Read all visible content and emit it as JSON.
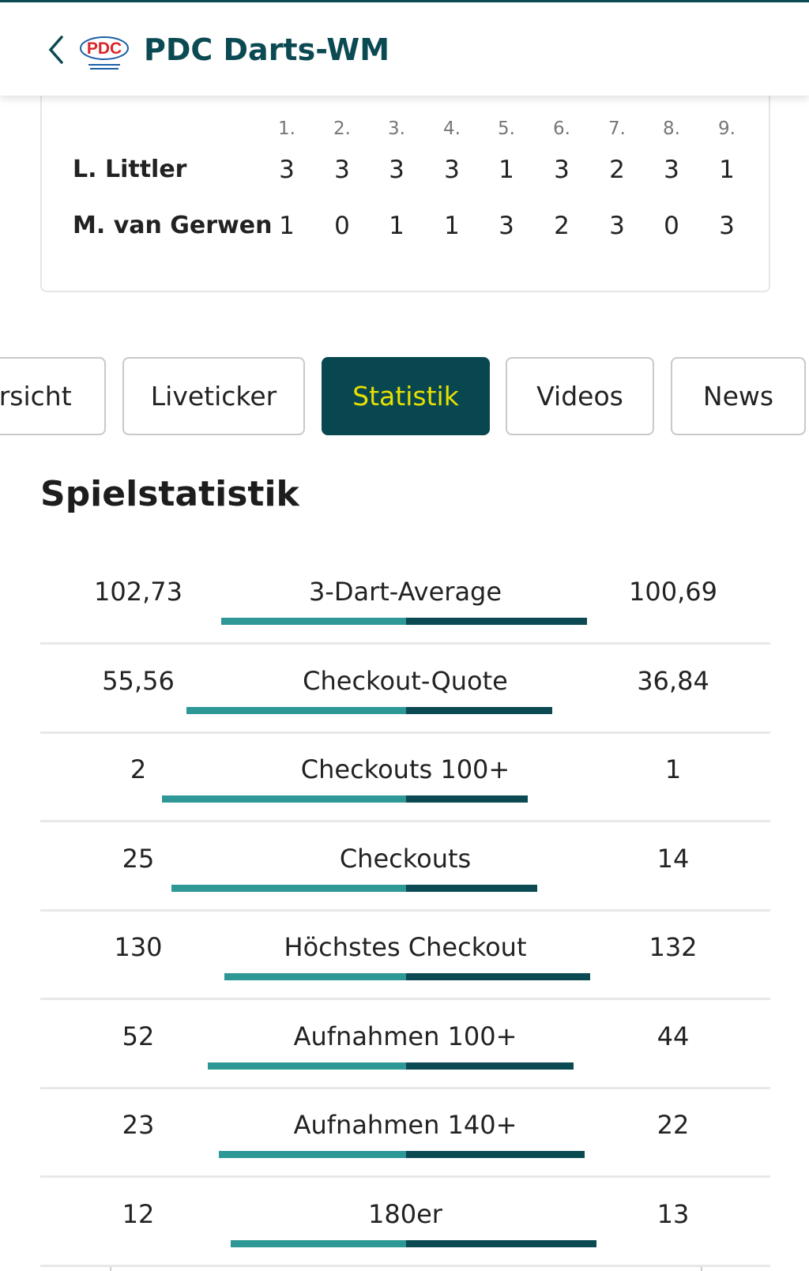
{
  "header": {
    "title": "PDC Darts-WM",
    "logo": "PDC"
  },
  "scoreboard": {
    "rounds": [
      "1.",
      "2.",
      "3.",
      "4.",
      "5.",
      "6.",
      "7.",
      "8.",
      "9."
    ],
    "players": [
      {
        "name": "L. Littler",
        "scores": [
          3,
          3,
          3,
          3,
          1,
          3,
          2,
          3,
          1
        ]
      },
      {
        "name": "M. van Gerwen",
        "scores": [
          1,
          0,
          1,
          1,
          3,
          2,
          3,
          0,
          3
        ]
      }
    ]
  },
  "tabs": {
    "items": [
      "Übersicht",
      "Liveticker",
      "Statistik",
      "Videos",
      "News"
    ],
    "active": 2
  },
  "stats": {
    "title": "Spielstatistik",
    "rows": [
      {
        "label": "3-Dart-Average",
        "left": {
          "value": 102.73,
          "label": "102,73"
        },
        "right": {
          "value": 100.69,
          "label": "100,69"
        }
      },
      {
        "label": "Checkout-Quote",
        "left": {
          "value": 55.56,
          "label": "55,56"
        },
        "right": {
          "value": 36.84,
          "label": "36,84"
        }
      },
      {
        "label": "Checkouts 100+",
        "left": 2,
        "right": 1
      },
      {
        "label": "Checkouts",
        "left": 25,
        "right": 14
      },
      {
        "label": "Höchstes Checkout",
        "left": 130,
        "right": 132
      },
      {
        "label": "Aufnahmen 100+",
        "left": 52,
        "right": 44
      },
      {
        "label": "Aufnahmen 140+",
        "left": 23,
        "right": 22
      },
      {
        "label": "180er",
        "left": 12,
        "right": 13
      }
    ]
  }
}
